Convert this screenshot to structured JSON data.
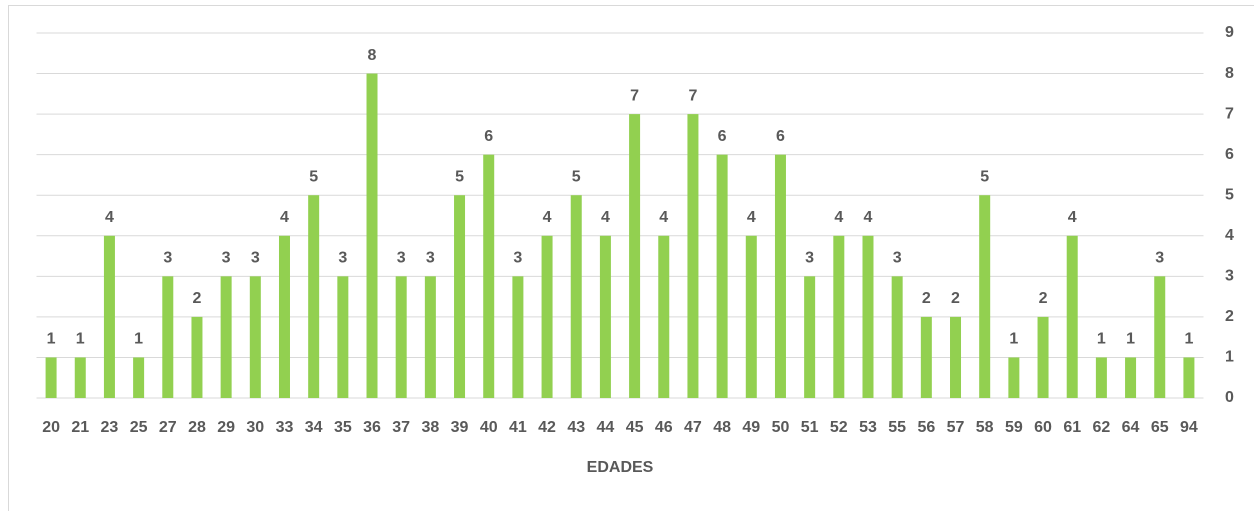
{
  "chart_data": {
    "type": "bar",
    "x_label": "EDADES",
    "categories": [
      "20",
      "21",
      "23",
      "25",
      "27",
      "28",
      "29",
      "30",
      "33",
      "34",
      "35",
      "36",
      "37",
      "38",
      "39",
      "40",
      "41",
      "42",
      "43",
      "44",
      "45",
      "46",
      "47",
      "48",
      "49",
      "50",
      "51",
      "52",
      "53",
      "55",
      "56",
      "57",
      "58",
      "59",
      "60",
      "61",
      "62",
      "64",
      "65",
      "94"
    ],
    "values": [
      1,
      1,
      4,
      1,
      3,
      2,
      3,
      3,
      4,
      5,
      3,
      8,
      3,
      3,
      5,
      6,
      3,
      4,
      5,
      4,
      7,
      4,
      7,
      6,
      4,
      6,
      3,
      4,
      4,
      3,
      2,
      2,
      5,
      1,
      2,
      4,
      1,
      1,
      3,
      1
    ],
    "color": "#92d050",
    "ylim": [
      0,
      9
    ],
    "yticks": [
      0,
      1,
      2,
      3,
      4,
      5,
      6,
      7,
      8,
      9
    ],
    "grid": true,
    "y_axis_side": "right"
  }
}
